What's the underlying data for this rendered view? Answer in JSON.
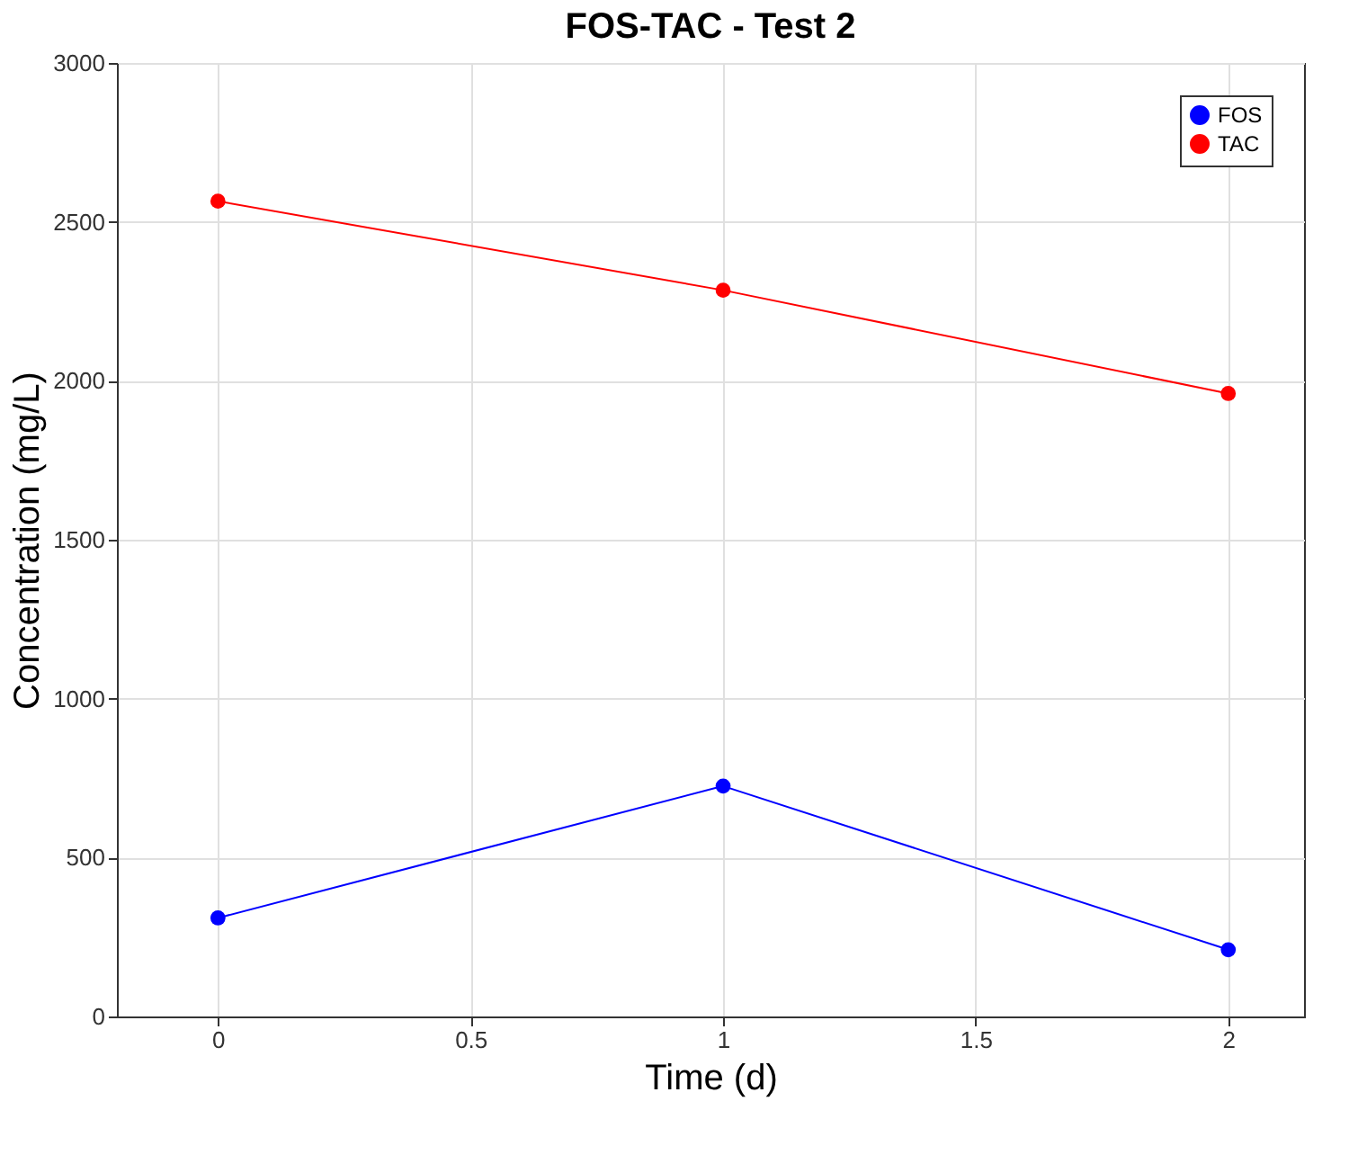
{
  "chart_data": {
    "type": "line",
    "title": "FOS-TAC - Test 2",
    "xlabel": "Time (d)",
    "ylabel": "Concentration (mg/L)",
    "x": [
      0,
      1,
      2
    ],
    "series": [
      {
        "name": "FOS",
        "color": "#0000ff",
        "values": [
          310,
          725,
          210
        ]
      },
      {
        "name": "TAC",
        "color": "#ff0000",
        "values": [
          2565,
          2285,
          1960
        ]
      }
    ],
    "xlim": [
      -0.2,
      2.15
    ],
    "xticks": [
      0,
      0.5,
      1,
      1.5,
      2
    ],
    "ylim": [
      0,
      3000
    ],
    "yticks": [
      0,
      500,
      1000,
      1500,
      2000,
      2500,
      3000
    ],
    "grid": true,
    "legend": "top right",
    "marker": "circle",
    "line_style": "solid"
  }
}
